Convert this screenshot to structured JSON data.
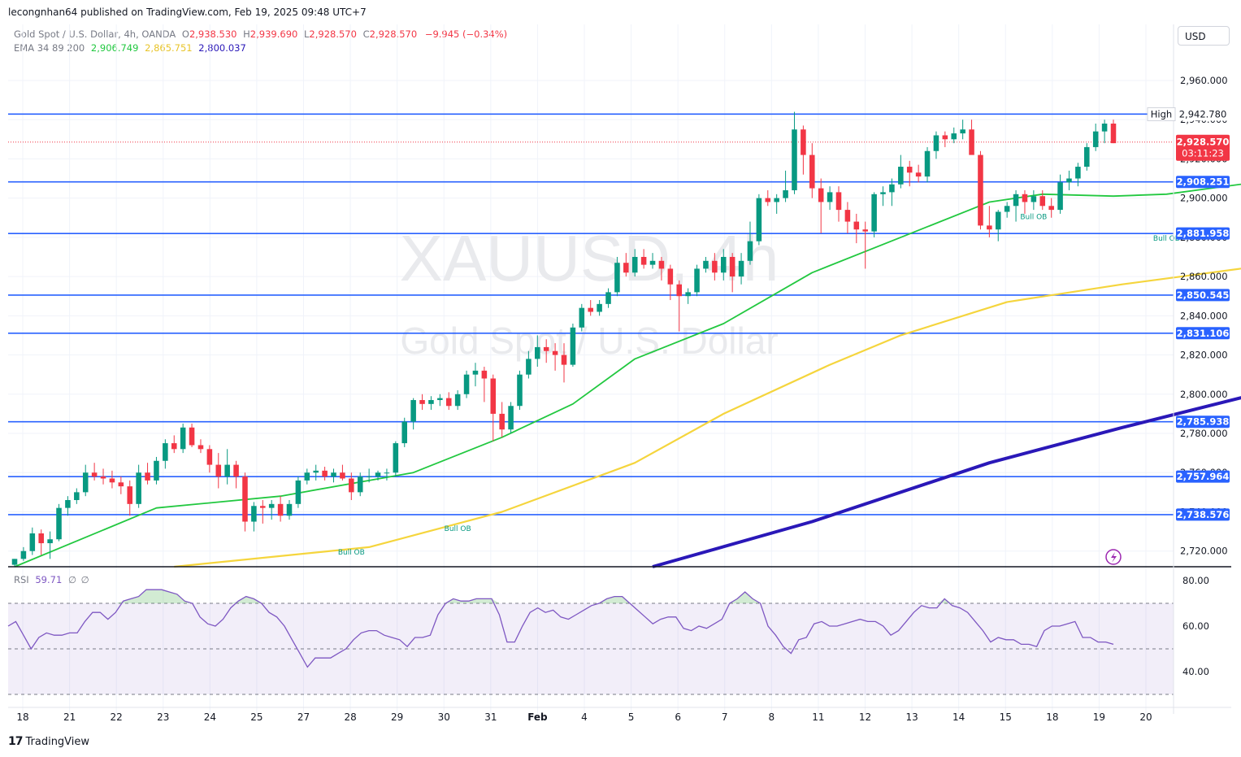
{
  "header": {
    "publish_line": "lecongnhan64 published on TradingView.com, Feb 19, 2025 09:48 UTC+7",
    "symbol_desc": "Gold Spot / U.S. Dollar, 4h, OANDA",
    "open_label": "O",
    "open": "2,938.530",
    "high_label": "H",
    "high": "2,939.690",
    "low_label": "L",
    "low": "2,928.570",
    "close_label": "C",
    "close": "2,928.570",
    "change": "−9.945 (−0.34%)",
    "ema_label": "EMA 34 89 200",
    "ema34": "2,906.749",
    "ema89": "2,865.751",
    "ema200": "2,800.037",
    "currency_button": "USD"
  },
  "watermark": {
    "symbol": "XAUUSD, 4h",
    "description": "Gold Spot / U.S. Dollar"
  },
  "rsi": {
    "label": "RSI",
    "value": "59.71",
    "extra1": "∅",
    "extra2": "∅"
  },
  "footer": {
    "brand": "TradingView",
    "logo": "17"
  },
  "colors": {
    "up": "#089981",
    "down": "#f23645",
    "hline": "#2962ff",
    "ema34": "#22c840",
    "ema89": "#f5d53d",
    "ema200": "#2a18b8",
    "rsi": "#7e57c2",
    "tag": "#2962ff"
  },
  "chart_data": {
    "type": "candlestick",
    "title": "Gold Spot / U.S. Dollar, 4h, OANDA",
    "ylim": [
      2712,
      2972
    ],
    "y_ticks": [
      2720,
      2740,
      2760,
      2780,
      2800,
      2820,
      2840,
      2860,
      2880,
      2900,
      2920,
      2940,
      2960
    ],
    "y_tick_labels": [
      "2,720.000",
      "2,740.000",
      "2,760.000",
      "2,780.000",
      "2,800.000",
      "2,820.000",
      "2,840.000",
      "2,860.000",
      "2,880.000",
      "2,900.000",
      "2,920.000",
      "2,940.000",
      "2,960.000"
    ],
    "x_tick_labels": [
      "18",
      "21",
      "22",
      "23",
      "24",
      "25",
      "27",
      "28",
      "29",
      "30",
      "31",
      "Feb",
      "4",
      "5",
      "6",
      "7",
      "8",
      "11",
      "12",
      "13",
      "14",
      "15",
      "18",
      "19",
      "20"
    ],
    "horizontal_levels": [
      {
        "value": 2942.845,
        "label": "2,942.845"
      },
      {
        "value": 2908.251,
        "label": "2,908.251"
      },
      {
        "value": 2881.958,
        "label": "2,881.958"
      },
      {
        "value": 2850.545,
        "label": "2,850.545"
      },
      {
        "value": 2831.106,
        "label": "2,831.106"
      },
      {
        "value": 2785.938,
        "label": "2,785.938"
      },
      {
        "value": 2757.964,
        "label": "2,757.964"
      },
      {
        "value": 2738.576,
        "label": "2,738.576"
      }
    ],
    "high_marker": {
      "label": "High",
      "value": 2942.78,
      "text": "2,942.780"
    },
    "last_price": {
      "value": 2928.57,
      "text": "2,928.570",
      "countdown": "03:11:23"
    },
    "annotations": [
      {
        "text": "Bull OB",
        "x_index": 38,
        "value": 2724
      },
      {
        "text": "Bull OB",
        "x_index": 50,
        "value": 2736
      },
      {
        "text": "Bull OB",
        "x_index": 115,
        "value": 2895
      },
      {
        "text": "Bull OB",
        "x_index": 130,
        "value": 2884
      }
    ],
    "candles": [
      [
        2713,
        2716,
        2712,
        2716
      ],
      [
        2716,
        2722,
        2715,
        2720
      ],
      [
        2720,
        2732,
        2718,
        2729
      ],
      [
        2729,
        2731,
        2718,
        2724
      ],
      [
        2724,
        2730,
        2716,
        2726
      ],
      [
        2726,
        2744,
        2725,
        2742
      ],
      [
        2742,
        2748,
        2738,
        2746
      ],
      [
        2746,
        2752,
        2744,
        2750
      ],
      [
        2750,
        2764,
        2748,
        2760
      ],
      [
        2760,
        2765,
        2756,
        2758
      ],
      [
        2758,
        2762,
        2754,
        2757
      ],
      [
        2757,
        2761,
        2752,
        2755
      ],
      [
        2755,
        2758,
        2749,
        2753
      ],
      [
        2753,
        2756,
        2738,
        2744
      ],
      [
        2744,
        2764,
        2742,
        2760
      ],
      [
        2760,
        2765,
        2754,
        2756
      ],
      [
        2756,
        2768,
        2754,
        2766
      ],
      [
        2766,
        2777,
        2762,
        2775
      ],
      [
        2775,
        2779,
        2770,
        2772
      ],
      [
        2772,
        2785,
        2770,
        2783
      ],
      [
        2783,
        2785,
        2773,
        2774
      ],
      [
        2774,
        2777,
        2770,
        2772
      ],
      [
        2772,
        2774,
        2760,
        2764
      ],
      [
        2764,
        2770,
        2752,
        2758
      ],
      [
        2758,
        2772,
        2754,
        2764
      ],
      [
        2764,
        2766,
        2752,
        2758
      ],
      [
        2758,
        2760,
        2730,
        2735
      ],
      [
        2735,
        2745,
        2730,
        2743
      ],
      [
        2743,
        2746,
        2734,
        2742
      ],
      [
        2742,
        2746,
        2736,
        2744
      ],
      [
        2744,
        2748,
        2735,
        2738
      ],
      [
        2738,
        2746,
        2736,
        2744
      ],
      [
        2744,
        2758,
        2742,
        2756
      ],
      [
        2756,
        2762,
        2754,
        2760
      ],
      [
        2760,
        2764,
        2756,
        2761
      ],
      [
        2761,
        2763,
        2756,
        2758
      ],
      [
        2758,
        2762,
        2755,
        2760
      ],
      [
        2760,
        2764,
        2756,
        2757
      ],
      [
        2757,
        2760,
        2746,
        2750
      ],
      [
        2750,
        2760,
        2748,
        2758
      ],
      [
        2758,
        2762,
        2755,
        2758
      ],
      [
        2758,
        2761,
        2756,
        2760
      ],
      [
        2760,
        2762,
        2756,
        2760
      ],
      [
        2760,
        2776,
        2758,
        2775
      ],
      [
        2775,
        2788,
        2773,
        2786
      ],
      [
        2786,
        2798,
        2782,
        2797
      ],
      [
        2797,
        2800,
        2792,
        2795
      ],
      [
        2795,
        2799,
        2792,
        2797
      ],
      [
        2797,
        2800,
        2794,
        2798
      ],
      [
        2798,
        2801,
        2792,
        2794
      ],
      [
        2794,
        2802,
        2792,
        2800
      ],
      [
        2800,
        2812,
        2798,
        2810
      ],
      [
        2810,
        2816,
        2804,
        2812
      ],
      [
        2812,
        2814,
        2796,
        2808
      ],
      [
        2808,
        2810,
        2776,
        2790
      ],
      [
        2790,
        2796,
        2778,
        2782
      ],
      [
        2782,
        2796,
        2780,
        2794
      ],
      [
        2794,
        2812,
        2792,
        2810
      ],
      [
        2810,
        2822,
        2808,
        2818
      ],
      [
        2818,
        2830,
        2814,
        2824
      ],
      [
        2824,
        2828,
        2816,
        2822
      ],
      [
        2822,
        2826,
        2812,
        2820
      ],
      [
        2820,
        2826,
        2806,
        2815
      ],
      [
        2815,
        2836,
        2814,
        2834
      ],
      [
        2834,
        2846,
        2832,
        2844
      ],
      [
        2844,
        2848,
        2840,
        2842
      ],
      [
        2842,
        2848,
        2840,
        2846
      ],
      [
        2846,
        2854,
        2844,
        2852
      ],
      [
        2852,
        2870,
        2850,
        2867
      ],
      [
        2867,
        2872,
        2860,
        2862
      ],
      [
        2862,
        2874,
        2860,
        2870
      ],
      [
        2870,
        2874,
        2864,
        2866
      ],
      [
        2866,
        2872,
        2864,
        2868
      ],
      [
        2868,
        2870,
        2858,
        2864
      ],
      [
        2864,
        2866,
        2848,
        2856
      ],
      [
        2856,
        2858,
        2832,
        2850
      ],
      [
        2850,
        2854,
        2846,
        2852
      ],
      [
        2852,
        2866,
        2850,
        2864
      ],
      [
        2864,
        2870,
        2862,
        2868
      ],
      [
        2868,
        2872,
        2858,
        2862
      ],
      [
        2862,
        2874,
        2858,
        2870
      ],
      [
        2870,
        2872,
        2852,
        2860
      ],
      [
        2860,
        2872,
        2856,
        2868
      ],
      [
        2868,
        2888,
        2866,
        2878
      ],
      [
        2878,
        2902,
        2876,
        2900
      ],
      [
        2900,
        2904,
        2896,
        2898
      ],
      [
        2898,
        2902,
        2892,
        2900
      ],
      [
        2900,
        2914,
        2898,
        2904
      ],
      [
        2904,
        2944,
        2902,
        2935
      ],
      [
        2935,
        2937,
        2912,
        2922
      ],
      [
        2922,
        2928,
        2900,
        2905
      ],
      [
        2905,
        2910,
        2882,
        2898
      ],
      [
        2898,
        2906,
        2894,
        2903
      ],
      [
        2903,
        2906,
        2888,
        2894
      ],
      [
        2894,
        2898,
        2882,
        2888
      ],
      [
        2888,
        2892,
        2877,
        2884
      ],
      [
        2884,
        2888,
        2864,
        2883
      ],
      [
        2883,
        2903,
        2880,
        2902
      ],
      [
        2902,
        2906,
        2896,
        2903
      ],
      [
        2903,
        2910,
        2896,
        2907
      ],
      [
        2907,
        2922,
        2905,
        2916
      ],
      [
        2916,
        2919,
        2906,
        2913
      ],
      [
        2913,
        2917,
        2908,
        2911
      ],
      [
        2911,
        2926,
        2908,
        2924
      ],
      [
        2924,
        2934,
        2920,
        2932
      ],
      [
        2932,
        2934,
        2926,
        2930
      ],
      [
        2930,
        2936,
        2928,
        2933
      ],
      [
        2933,
        2940,
        2930,
        2935
      ],
      [
        2935,
        2940,
        2924,
        2922
      ],
      [
        2922,
        2924,
        2884,
        2886
      ],
      [
        2886,
        2896,
        2880,
        2884
      ],
      [
        2884,
        2894,
        2878,
        2893
      ],
      [
        2893,
        2898,
        2890,
        2896
      ],
      [
        2896,
        2904,
        2888,
        2902
      ],
      [
        2902,
        2904,
        2892,
        2898
      ],
      [
        2898,
        2904,
        2894,
        2901
      ],
      [
        2901,
        2904,
        2894,
        2896
      ],
      [
        2896,
        2900,
        2890,
        2894
      ],
      [
        2894,
        2912,
        2892,
        2908
      ],
      [
        2908,
        2914,
        2904,
        2910
      ],
      [
        2910,
        2918,
        2906,
        2916
      ],
      [
        2916,
        2928,
        2914,
        2926
      ],
      [
        2926,
        2938,
        2924,
        2934
      ],
      [
        2934,
        2940,
        2928,
        2938
      ],
      [
        2938,
        2940,
        2928,
        2928
      ]
    ],
    "ema34": [
      [
        0,
        2712
      ],
      [
        16,
        2742
      ],
      [
        30,
        2748
      ],
      [
        45,
        2760
      ],
      [
        55,
        2778
      ],
      [
        63,
        2795
      ],
      [
        70,
        2818
      ],
      [
        80,
        2836
      ],
      [
        90,
        2862
      ],
      [
        100,
        2880
      ],
      [
        110,
        2898
      ],
      [
        116,
        2902
      ],
      [
        124,
        2901
      ],
      [
        130,
        2902
      ],
      [
        140,
        2908
      ]
    ],
    "ema89": [
      [
        18,
        2712
      ],
      [
        40,
        2722
      ],
      [
        55,
        2740
      ],
      [
        70,
        2765
      ],
      [
        80,
        2790
      ],
      [
        92,
        2815
      ],
      [
        100,
        2830
      ],
      [
        112,
        2847
      ],
      [
        125,
        2856
      ],
      [
        140,
        2865
      ]
    ],
    "ema200": [
      [
        72,
        2712
      ],
      [
        90,
        2735
      ],
      [
        110,
        2765
      ],
      [
        125,
        2783
      ],
      [
        140,
        2800
      ]
    ],
    "rsi_ylim": [
      25,
      85
    ],
    "rsi_levels": [
      70,
      50,
      30
    ],
    "rsi_tick_labels": [
      "80.00",
      "60.00",
      "40.00"
    ],
    "rsi_values": [
      60,
      62,
      56,
      50,
      55,
      57,
      56,
      56,
      57,
      57,
      62,
      66,
      66,
      63,
      66,
      71,
      72,
      73,
      76,
      76,
      76,
      75,
      74,
      71,
      70,
      64,
      61,
      60,
      63,
      68,
      71,
      73,
      72,
      70,
      66,
      64,
      60,
      54,
      48,
      42,
      46,
      46,
      46,
      48,
      50,
      54,
      57,
      58,
      58,
      56,
      55,
      54,
      51,
      55,
      55,
      56,
      65,
      70,
      72,
      71,
      71,
      72,
      72,
      72,
      65,
      53,
      53,
      60,
      66,
      68,
      66,
      67,
      64,
      63,
      65,
      67,
      69,
      70,
      72,
      73,
      73,
      70,
      67,
      64,
      61,
      63,
      64,
      64,
      59,
      58,
      60,
      59,
      61,
      63,
      70,
      72,
      75,
      72,
      70,
      60,
      56,
      51,
      48,
      54,
      55,
      61,
      62,
      60,
      60,
      61,
      62,
      63,
      62,
      62,
      60,
      56,
      58,
      62,
      66,
      69,
      68,
      68,
      72,
      69,
      68,
      66,
      62,
      58,
      53,
      55,
      54,
      54,
      52,
      52,
      51,
      58,
      60,
      60,
      61,
      62,
      55,
      55,
      53,
      53,
      52
    ]
  }
}
